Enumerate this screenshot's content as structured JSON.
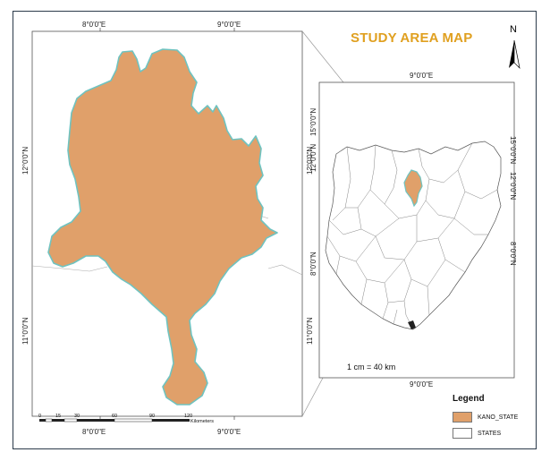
{
  "title": "STUDY AREA MAP",
  "north_label": "N",
  "scale_note": "1 cm = 40 km",
  "colors": {
    "kano_fill": "#e0a06a",
    "kano_edge": "#6fc3c0",
    "title": "#e0a020",
    "frame": "#2b3a4a"
  },
  "main_map": {
    "top_ticks": [
      "8°0'0\"E",
      "9°0'0\"E"
    ],
    "bottom_ticks": [
      "8°0'0\"E",
      "9°0'0\"E"
    ],
    "left_ticks": [
      "12°0'0\"N",
      "11°0'0\"N"
    ],
    "right_ticks": [
      "12°0'0\"N",
      "11°0'0\"N"
    ],
    "scalebar": {
      "ticks": [
        "0",
        "15",
        "30",
        "60",
        "90",
        "120"
      ],
      "unit": "Kilometers"
    }
  },
  "inset_map": {
    "top_tick": "9°0'0\"E",
    "bottom_tick": "9°0'0\"E",
    "left_ticks": [
      "15°0'0\"N",
      "12°0'0\"N",
      "8°0'0\"N"
    ],
    "right_ticks": [
      "15°0'0\"N",
      "12°0'0\"N",
      "8°0'0\"N"
    ]
  },
  "legend": {
    "title": "Legend",
    "items": [
      {
        "label": "KANO_STATE",
        "color": "#e0a06a"
      },
      {
        "label": "STATES",
        "color": "#ffffff"
      }
    ]
  }
}
